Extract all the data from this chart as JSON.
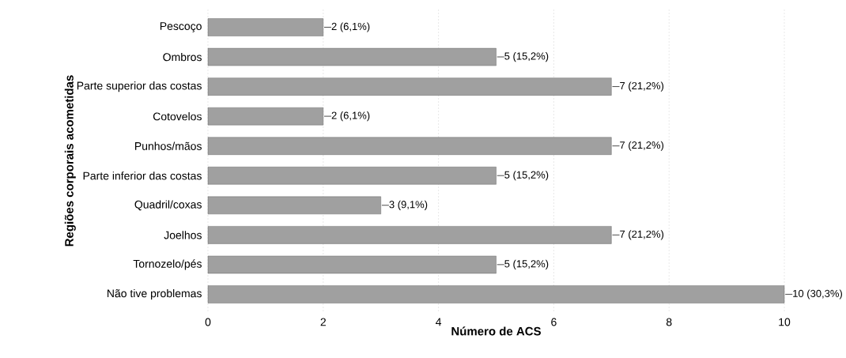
{
  "chart_data": {
    "type": "bar",
    "orientation": "horizontal",
    "xlabel": "Número de ACS",
    "ylabel": "Regiões corporais acometidas",
    "categories": [
      "Pescoço",
      "Ombros",
      "Parte superior das costas",
      "Cotovelos",
      "Punhos/mãos",
      "Parte inferior das costas",
      "Quadril/coxas",
      "Joelhos",
      "Tornozelo/pés",
      "Não tive problemas"
    ],
    "values": [
      2,
      5,
      7,
      2,
      7,
      5,
      3,
      7,
      5,
      10
    ],
    "value_labels": [
      "2 (6,1%)",
      "5 (15,2%)",
      "7 (21,2%)",
      "2 (6,1%)",
      "7 (21,2%)",
      "5 (15,2%)",
      "3 (9,1%)",
      "7 (21,2%)",
      "5 (15,2%)",
      "10 (30,3%)"
    ],
    "color": "#a0a0a0",
    "xlim": [
      0,
      10
    ],
    "xticks": [
      0,
      2,
      4,
      6,
      8,
      10
    ],
    "grid": "x"
  }
}
